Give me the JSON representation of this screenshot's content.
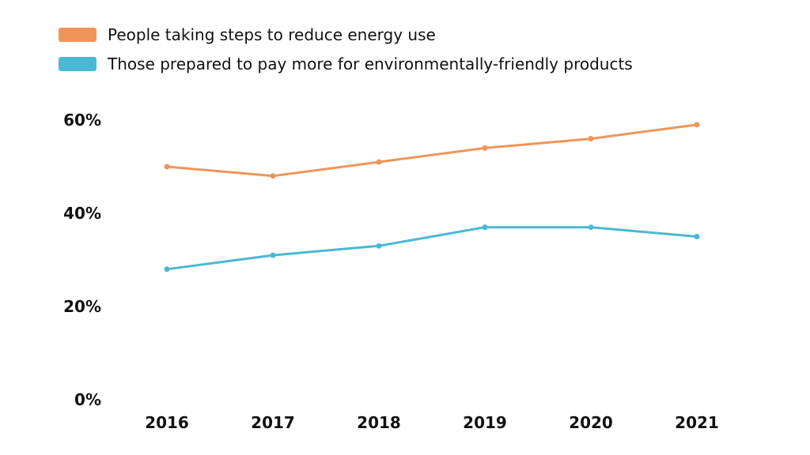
{
  "chart_data": {
    "type": "line",
    "categories": [
      "2016",
      "2017",
      "2018",
      "2019",
      "2020",
      "2021"
    ],
    "series": [
      {
        "name": "People taking steps to reduce energy use",
        "color": "#F0955A",
        "values": [
          50,
          48,
          51,
          54,
          56,
          59
        ]
      },
      {
        "name": "Those prepared to pay more for environmentally-friendly products",
        "color": "#4AB8D4",
        "values": [
          28,
          31,
          33,
          37,
          37,
          35
        ]
      }
    ],
    "yticks": [
      "0%",
      "20%",
      "40%",
      "60%"
    ],
    "ylim": [
      0,
      60
    ],
    "grid": false,
    "legend_position": "top-left"
  }
}
